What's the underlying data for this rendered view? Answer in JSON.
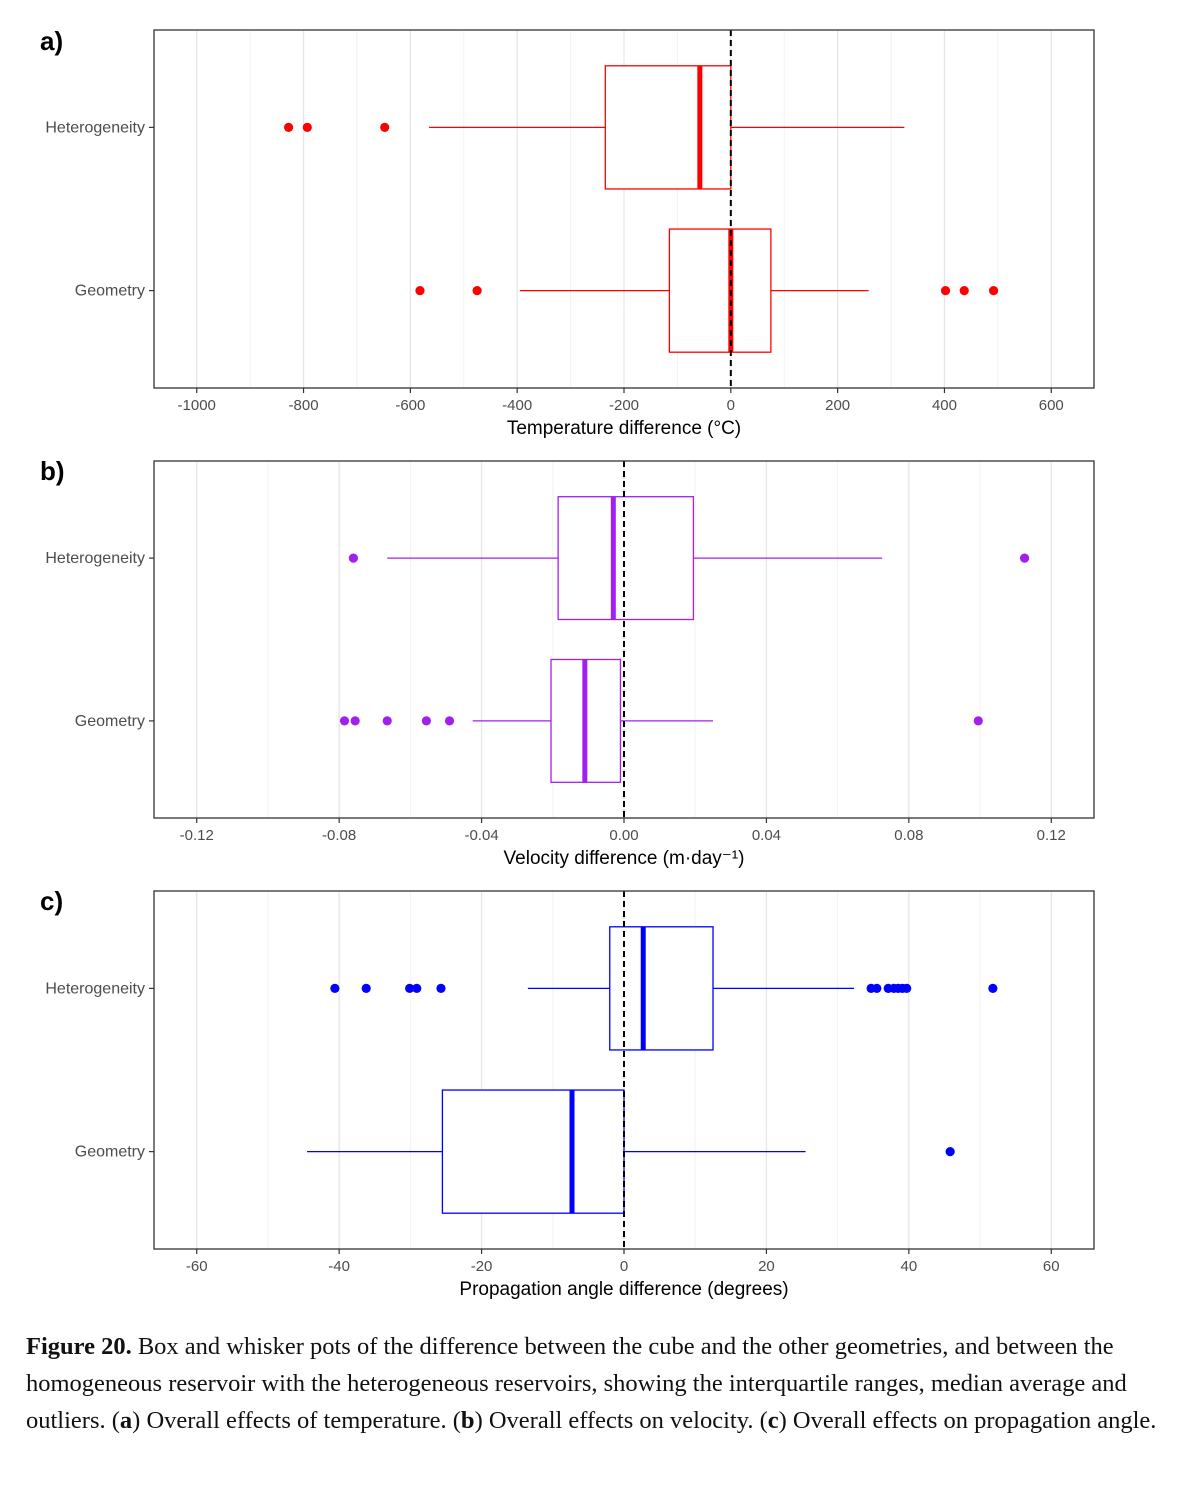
{
  "chart_data": [
    {
      "type": "boxplot",
      "panel_label": "a)",
      "xlabel": "Temperature difference (°C)",
      "xlim": [
        -1080,
        680
      ],
      "xticks": [
        -1000,
        -800,
        -600,
        -400,
        -200,
        0,
        200,
        400,
        600
      ],
      "xtick_labels": [
        "-1000",
        "-800",
        "-600",
        "-400",
        "-200",
        "0",
        "200",
        "400",
        "600"
      ],
      "minor_ticks": [
        -900,
        -700,
        -500,
        -300,
        -100,
        100,
        300,
        500
      ],
      "reference_line": 0,
      "color": "#ff0000",
      "categories": [
        "Heterogeneity",
        "Geometry"
      ],
      "boxes": [
        {
          "name": "Heterogeneity",
          "whisker_low": -565,
          "q1": -235,
          "median": -58,
          "q3": 0,
          "whisker_high": 325,
          "outliers": [
            -828,
            -793,
            -648
          ]
        },
        {
          "name": "Geometry",
          "whisker_low": -395,
          "q1": -115,
          "median": 0,
          "q3": 75,
          "whisker_high": 258,
          "outliers": [
            -582,
            -475,
            402,
            437,
            492
          ]
        }
      ]
    },
    {
      "type": "boxplot",
      "panel_label": "b)",
      "xlabel": "Velocity difference (m·day⁻¹)",
      "xlim": [
        -0.132,
        0.132
      ],
      "xticks": [
        -0.12,
        -0.08,
        -0.04,
        0.0,
        0.04,
        0.08,
        0.12
      ],
      "xtick_labels": [
        "-0.12",
        "-0.08",
        "-0.04",
        "0.00",
        "0.04",
        "0.08",
        "0.12"
      ],
      "minor_ticks": [
        -0.1,
        -0.06,
        -0.02,
        0.02,
        0.06,
        0.1
      ],
      "reference_line": 0,
      "color": "#a020f0",
      "categories": [
        "Heterogeneity",
        "Geometry"
      ],
      "boxes": [
        {
          "name": "Heterogeneity",
          "whisker_low": -0.0665,
          "q1": -0.0185,
          "median": -0.003,
          "q3": 0.0195,
          "whisker_high": 0.0725,
          "outliers": [
            -0.076,
            0.1125
          ]
        },
        {
          "name": "Geometry",
          "whisker_low": -0.0425,
          "q1": -0.0205,
          "median": -0.011,
          "q3": -0.001,
          "whisker_high": 0.025,
          "outliers": [
            -0.0785,
            -0.0755,
            -0.0665,
            -0.0555,
            -0.049,
            0.0995
          ]
        }
      ]
    },
    {
      "type": "boxplot",
      "panel_label": "c)",
      "xlabel": "Propagation angle difference (degrees)",
      "xlim": [
        -66,
        66
      ],
      "xticks": [
        -60,
        -40,
        -20,
        0,
        20,
        40,
        60
      ],
      "xtick_labels": [
        "-60",
        "-40",
        "-20",
        "0",
        "20",
        "40",
        "60"
      ],
      "minor_ticks": [
        -50,
        -30,
        -10,
        10,
        30,
        50
      ],
      "reference_line": 0,
      "color": "#0000ff",
      "categories": [
        "Heterogeneity",
        "Geometry"
      ],
      "boxes": [
        {
          "name": "Heterogeneity",
          "whisker_low": -13.5,
          "q1": -2,
          "median": 2.7,
          "q3": 12.5,
          "whisker_high": 32.3,
          "outliers": [
            -40.6,
            -36.2,
            -30.1,
            -29.1,
            -25.7,
            34.7,
            35.5,
            37.1,
            37.9,
            38.5,
            39.1,
            39.7,
            51.8
          ]
        },
        {
          "name": "Geometry",
          "whisker_low": -44.5,
          "q1": -25.5,
          "median": -7.3,
          "q3": 0,
          "whisker_high": 25.5,
          "outliers": [
            45.8
          ]
        }
      ]
    }
  ],
  "caption": {
    "label": "Figure 20.",
    "text_1": " Box and whisker pots of the difference between the cube and the other geometries, and between the homogeneous reservoir with the heterogeneous reservoirs, showing the interquartile ranges, median average and outliers. (",
    "letter_a": "a",
    "text_2": ") Overall effects of temperature. (",
    "letter_b": "b",
    "text_3": ") Overall effects on velocity. (",
    "letter_c": "c",
    "text_4": ") Overall effects on propagation angle."
  }
}
